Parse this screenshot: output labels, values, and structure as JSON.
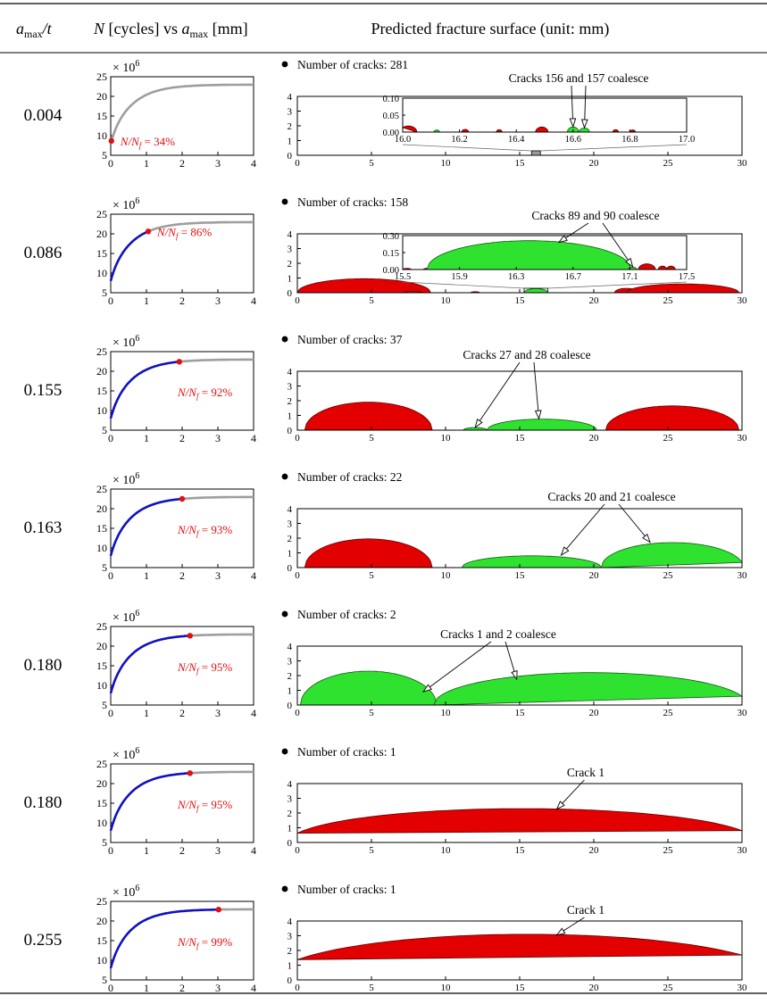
{
  "header": {
    "col1_var": "a",
    "col1_sub": "max",
    "col1_den": "/t",
    "col2_pre": "N",
    "col2_mid": " [cycles] vs ",
    "col2_var": "a",
    "col2_sub": "max",
    "col2_post": " [mm]",
    "col3": "Predicted fracture surface (unit: mm)"
  },
  "curve_axis": {
    "xlim": [
      0,
      4
    ],
    "ylim": [
      5,
      25
    ],
    "xticks": [
      0,
      1,
      2,
      3,
      4
    ],
    "yticks": [
      5,
      10,
      15,
      20,
      25
    ],
    "multiplier_base": "× 10",
    "multiplier_exp": "6"
  },
  "surface_axis": {
    "xlim": [
      0,
      30
    ],
    "ylim": [
      0,
      4
    ],
    "xticks": [
      0,
      5,
      10,
      15,
      20,
      25,
      30
    ],
    "yticks": [
      0,
      1,
      2,
      3,
      4
    ]
  },
  "cracks_prefix": "Number of cracks: ",
  "colors": {
    "completed": "#1010c0",
    "remaining": "#9e9e9e",
    "marker": "#e01010",
    "red_crack": "#e30000",
    "green_crack": "#2fe22f"
  },
  "rows": [
    {
      "ratio": "0.004",
      "nf_label": "N/N",
      "nf_sub": "f",
      "nf_value": " = 34%",
      "marker": [
        0.02,
        7.8
      ],
      "label_pos": "right",
      "num_cracks": "281",
      "annotation": "Cracks 156 and 157 coalesce",
      "cracks": [],
      "inset": {
        "xlim": [
          16.0,
          17.0
        ],
        "ylim": [
          0,
          0.1
        ],
        "xticks": [
          "16.0",
          "16.2",
          "16.4",
          "16.6",
          "16.8",
          "17.0"
        ],
        "yticks": [
          "0.00",
          "0.05",
          "0.10"
        ],
        "source_range": [
          15.8,
          16.4
        ],
        "cracks": [
          {
            "c": 16.02,
            "w": 0.03,
            "h": 0.018,
            "color": "red"
          },
          {
            "c": 16.12,
            "w": 0.01,
            "h": 0.006,
            "color": "green"
          },
          {
            "c": 16.22,
            "w": 0.012,
            "h": 0.008,
            "color": "red"
          },
          {
            "c": 16.34,
            "w": 0.01,
            "h": 0.007,
            "color": "red"
          },
          {
            "c": 16.49,
            "w": 0.022,
            "h": 0.015,
            "color": "red"
          },
          {
            "c": 16.6,
            "w": 0.02,
            "h": 0.015,
            "color": "green"
          },
          {
            "c": 16.64,
            "w": 0.018,
            "h": 0.012,
            "color": "green"
          },
          {
            "c": 16.75,
            "w": 0.01,
            "h": 0.007,
            "color": "red"
          },
          {
            "c": 16.81,
            "w": 0.01,
            "h": 0.006,
            "color": "red"
          }
        ]
      }
    },
    {
      "ratio": "0.086",
      "nf_label": "N/N",
      "nf_sub": "f",
      "nf_value": " = 86%",
      "marker": [
        1.05,
        18.5
      ],
      "label_pos": "right",
      "num_cracks": "158",
      "annotation": "Cracks 89 and 90 coalesce",
      "cracks": [
        {
          "c": 4.5,
          "w": 4.5,
          "h": 0.95,
          "color": "red"
        },
        {
          "c": 7.8,
          "w": 0.6,
          "h": 0.1,
          "color": "red"
        },
        {
          "c": 12.0,
          "w": 0.3,
          "h": 0.07,
          "color": "red"
        },
        {
          "c": 16.1,
          "w": 0.8,
          "h": 0.28,
          "color": "green"
        },
        {
          "c": 22.2,
          "w": 0.8,
          "h": 0.3,
          "color": "red"
        },
        {
          "c": 26.0,
          "w": 3.8,
          "h": 0.6,
          "color": "red"
        }
      ],
      "inset": {
        "xlim": [
          15.5,
          17.5
        ],
        "ylim": [
          0,
          0.3
        ],
        "xticks": [
          "15.5",
          "15.9",
          "16.3",
          "16.7",
          "17.1",
          "17.5"
        ],
        "yticks": [
          "0.00",
          "0.15",
          "0.30"
        ],
        "source_range": [
          15.3,
          16.9
        ],
        "cracks": [
          {
            "c": 15.53,
            "w": 0.03,
            "h": 0.01,
            "color": "red"
          },
          {
            "c": 15.67,
            "w": 0.025,
            "h": 0.01,
            "color": "red"
          },
          {
            "c": 16.39,
            "w": 0.72,
            "h": 0.255,
            "color": "green"
          },
          {
            "c": 17.12,
            "w": 0.03,
            "h": 0.02,
            "color": "green"
          },
          {
            "c": 17.22,
            "w": 0.06,
            "h": 0.05,
            "color": "red"
          },
          {
            "c": 17.33,
            "w": 0.03,
            "h": 0.03,
            "color": "red"
          },
          {
            "c": 17.39,
            "w": 0.03,
            "h": 0.03,
            "color": "red"
          }
        ]
      }
    },
    {
      "ratio": "0.155",
      "nf_label": "N/N",
      "nf_sub": "f",
      "nf_value": " = 92%",
      "marker": [
        1.92,
        21.2
      ],
      "label_pos": "below",
      "num_cracks": "37",
      "annotation": "Cracks 27 and 28 coalesce",
      "cracks": [
        {
          "c": 4.8,
          "w": 4.3,
          "h": 1.9,
          "color": "red"
        },
        {
          "c": 12.0,
          "w": 0.8,
          "h": 0.18,
          "color": "green"
        },
        {
          "c": 16.5,
          "w": 3.7,
          "h": 0.75,
          "color": "green"
        },
        {
          "c": 25.3,
          "w": 4.5,
          "h": 1.65,
          "color": "red"
        }
      ]
    },
    {
      "ratio": "0.163",
      "nf_label": "N/N",
      "nf_sub": "f",
      "nf_value": " = 93%",
      "marker": [
        2.0,
        21.5
      ],
      "label_pos": "below",
      "num_cracks": "22",
      "annotation": "Cracks 20 and 21 coalesce",
      "cracks": [
        {
          "c": 4.8,
          "w": 4.3,
          "h": 1.95,
          "color": "red"
        },
        {
          "c": 15.8,
          "w": 4.7,
          "h": 0.8,
          "color": "green"
        },
        {
          "c": 25.3,
          "w": 4.8,
          "h": 1.7,
          "color": "green"
        }
      ]
    },
    {
      "ratio": "0.180",
      "nf_label": "N/N",
      "nf_sub": "f",
      "nf_value": " = 95%",
      "marker": [
        2.22,
        22.0
      ],
      "label_pos": "below",
      "num_cracks": "2",
      "annotation": "Cracks 1 and 2 coalesce",
      "cracks": [
        {
          "c": 4.8,
          "w": 4.6,
          "h": 2.3,
          "color": "green"
        },
        {
          "c": 19.8,
          "w": 10.6,
          "h": 2.2,
          "color": "green"
        }
      ]
    },
    {
      "ratio": "0.180",
      "nf_label": "N/N",
      "nf_sub": "f",
      "nf_value": " = 95%",
      "marker": [
        2.22,
        22.0
      ],
      "label_pos": "below",
      "num_cracks": "1",
      "annotation": "Crack 1",
      "cracks": [
        {
          "c": 15.2,
          "w": 15.8,
          "h": 2.3,
          "color": "red"
        }
      ]
    },
    {
      "ratio": "0.255",
      "nf_label": "N/N",
      "nf_sub": "f",
      "nf_value": " = 99%",
      "marker": [
        3.02,
        23.0
      ],
      "label_pos": "below",
      "num_cracks": "1",
      "annotation": "Crack 1",
      "cracks": [
        {
          "c": 15.5,
          "w": 17.3,
          "h": 3.1,
          "color": "red"
        }
      ]
    }
  ]
}
